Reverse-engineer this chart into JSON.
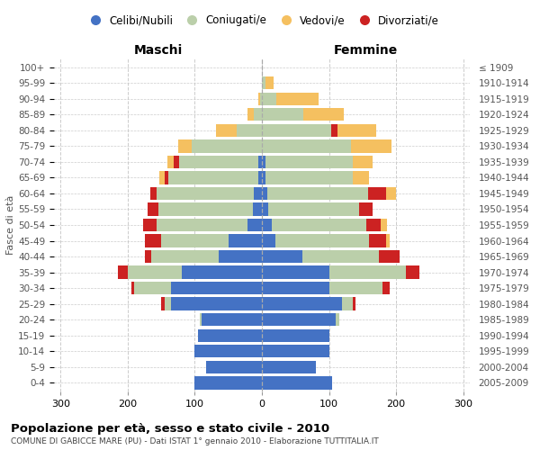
{
  "age_groups": [
    "0-4",
    "5-9",
    "10-14",
    "15-19",
    "20-24",
    "25-29",
    "30-34",
    "35-39",
    "40-44",
    "45-49",
    "50-54",
    "55-59",
    "60-64",
    "65-69",
    "70-74",
    "75-79",
    "80-84",
    "85-89",
    "90-94",
    "95-99",
    "100+"
  ],
  "birth_years": [
    "2005-2009",
    "2000-2004",
    "1995-1999",
    "1990-1994",
    "1985-1989",
    "1980-1984",
    "1975-1979",
    "1970-1974",
    "1965-1969",
    "1960-1964",
    "1955-1959",
    "1950-1954",
    "1945-1949",
    "1940-1944",
    "1935-1939",
    "1930-1934",
    "1925-1929",
    "1920-1924",
    "1915-1919",
    "1910-1914",
    "≤ 1909"
  ],
  "male_celibi": [
    100,
    83,
    100,
    95,
    90,
    135,
    135,
    120,
    65,
    50,
    22,
    14,
    12,
    5,
    5,
    0,
    0,
    0,
    0,
    0,
    0
  ],
  "male_coniugati": [
    0,
    0,
    0,
    0,
    3,
    10,
    55,
    80,
    100,
    100,
    135,
    140,
    145,
    135,
    118,
    105,
    38,
    12,
    3,
    0,
    0
  ],
  "male_vedovi": [
    0,
    0,
    0,
    0,
    0,
    0,
    0,
    0,
    0,
    0,
    0,
    0,
    0,
    8,
    10,
    20,
    30,
    10,
    2,
    0,
    0
  ],
  "male_divorziati": [
    0,
    0,
    0,
    0,
    0,
    5,
    5,
    15,
    10,
    25,
    20,
    17,
    10,
    5,
    8,
    0,
    0,
    0,
    0,
    0,
    0
  ],
  "female_nubili": [
    105,
    80,
    100,
    100,
    110,
    120,
    100,
    100,
    60,
    20,
    15,
    10,
    8,
    5,
    5,
    0,
    0,
    0,
    0,
    0,
    0
  ],
  "female_coniugate": [
    0,
    0,
    0,
    0,
    5,
    15,
    80,
    115,
    115,
    140,
    140,
    135,
    150,
    130,
    130,
    133,
    103,
    62,
    22,
    5,
    0
  ],
  "female_vedove": [
    0,
    0,
    0,
    0,
    0,
    0,
    0,
    0,
    0,
    5,
    10,
    0,
    15,
    25,
    30,
    60,
    58,
    60,
    62,
    12,
    0
  ],
  "female_divorziate": [
    0,
    0,
    0,
    0,
    0,
    5,
    10,
    20,
    30,
    25,
    22,
    20,
    27,
    0,
    0,
    0,
    10,
    0,
    0,
    0,
    0
  ],
  "color_celibi": "#4472C4",
  "color_coniugati": "#BBCFAA",
  "color_vedovi": "#F5C060",
  "color_divorziati": "#CC2222",
  "xlim": 310,
  "title": "Popolazione per età, sesso e stato civile - 2010",
  "subtitle": "COMUNE DI GABICCE MARE (PU) - Dati ISTAT 1° gennaio 2010 - Elaborazione TUTTITALIA.IT",
  "label_maschi": "Maschi",
  "label_femmine": "Femmine",
  "ylabel_left": "Fasce di età",
  "legend_labels": [
    "Celibi/Nubili",
    "Coniugati/e",
    "Vedovi/e",
    "Divorziati/e"
  ]
}
